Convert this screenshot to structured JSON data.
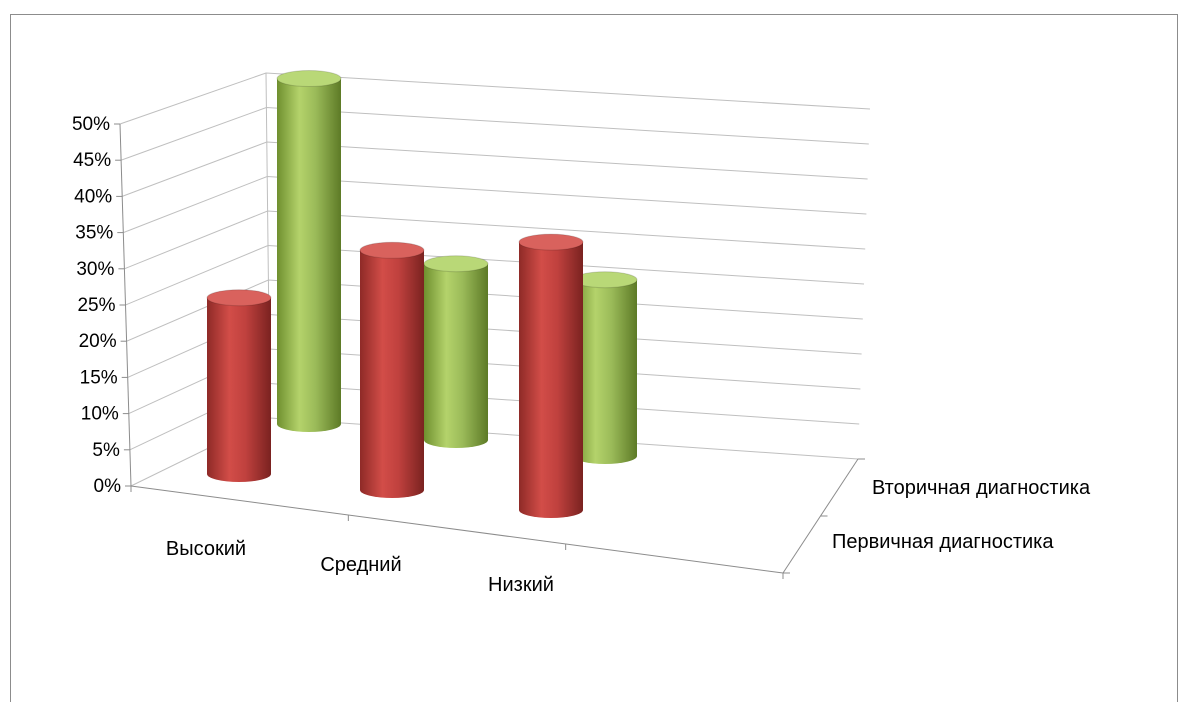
{
  "chart_data": {
    "type": "bar",
    "subtype": "3d-cylinder",
    "categories": [
      "Высокий",
      "Средний",
      "Низкий"
    ],
    "series": [
      {
        "name": "Первичная диагностика",
        "values": [
          25,
          34,
          38
        ],
        "color": "#c0413e"
      },
      {
        "name": "Вторичная диагностика",
        "values": [
          49,
          25,
          25
        ],
        "color": "#9bbb59"
      }
    ],
    "ylim": [
      0,
      50
    ],
    "y_ticks": [
      "0%",
      "5%",
      "10%",
      "15%",
      "20%",
      "25%",
      "30%",
      "35%",
      "40%",
      "45%",
      "50%"
    ],
    "grid": true,
    "title": "",
    "xlabel": "",
    "ylabel": ""
  }
}
